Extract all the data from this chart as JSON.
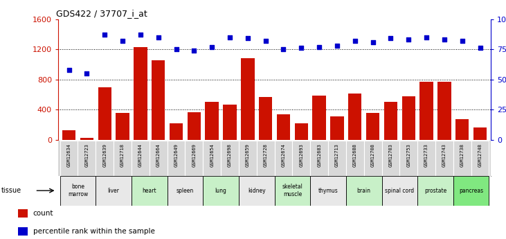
{
  "title": "GDS422 / 37707_i_at",
  "samples": [
    "GSM12634",
    "GSM12723",
    "GSM12639",
    "GSM12718",
    "GSM12644",
    "GSM12664",
    "GSM12649",
    "GSM12669",
    "GSM12654",
    "GSM12698",
    "GSM12659",
    "GSM12728",
    "GSM12674",
    "GSM12693",
    "GSM12683",
    "GSM12713",
    "GSM12688",
    "GSM12708",
    "GSM12703",
    "GSM12753",
    "GSM12733",
    "GSM12743",
    "GSM12738",
    "GSM12748"
  ],
  "counts": [
    130,
    30,
    700,
    360,
    1230,
    1050,
    220,
    370,
    500,
    470,
    1080,
    570,
    340,
    220,
    590,
    310,
    610,
    360,
    500,
    580,
    770,
    770,
    270,
    160
  ],
  "percentiles": [
    58,
    55,
    87,
    82,
    87,
    85,
    75,
    74,
    77,
    85,
    84,
    82,
    75,
    76,
    77,
    78,
    82,
    81,
    84,
    83,
    85,
    83,
    82,
    76
  ],
  "tissues": [
    {
      "name": "bone\nmarrow",
      "start": 0,
      "end": 2,
      "color": "#e8e8e8"
    },
    {
      "name": "liver",
      "start": 2,
      "end": 4,
      "color": "#e8e8e8"
    },
    {
      "name": "heart",
      "start": 4,
      "end": 6,
      "color": "#c8f0c8"
    },
    {
      "name": "spleen",
      "start": 6,
      "end": 8,
      "color": "#e8e8e8"
    },
    {
      "name": "lung",
      "start": 8,
      "end": 10,
      "color": "#c8f0c8"
    },
    {
      "name": "kidney",
      "start": 10,
      "end": 12,
      "color": "#e8e8e8"
    },
    {
      "name": "skeletal\nmuscle",
      "start": 12,
      "end": 14,
      "color": "#c8f0c8"
    },
    {
      "name": "thymus",
      "start": 14,
      "end": 16,
      "color": "#e8e8e8"
    },
    {
      "name": "brain",
      "start": 16,
      "end": 18,
      "color": "#c8f0c8"
    },
    {
      "name": "spinal cord",
      "start": 18,
      "end": 20,
      "color": "#e8e8e8"
    },
    {
      "name": "prostate",
      "start": 20,
      "end": 22,
      "color": "#c8f0c8"
    },
    {
      "name": "pancreas",
      "start": 22,
      "end": 24,
      "color": "#80e880"
    }
  ],
  "bar_color": "#cc1100",
  "dot_color": "#0000cc",
  "ylim_left": [
    0,
    1600
  ],
  "ylim_right": [
    0,
    100
  ],
  "yticks_left": [
    0,
    400,
    800,
    1200,
    1600
  ],
  "yticks_right": [
    0,
    25,
    50,
    75,
    100
  ],
  "grid_lines": [
    400,
    800,
    1200
  ],
  "plot_bg": "#ffffff",
  "fig_bg": "#ffffff",
  "sample_row_bg": "#d8d8d8"
}
